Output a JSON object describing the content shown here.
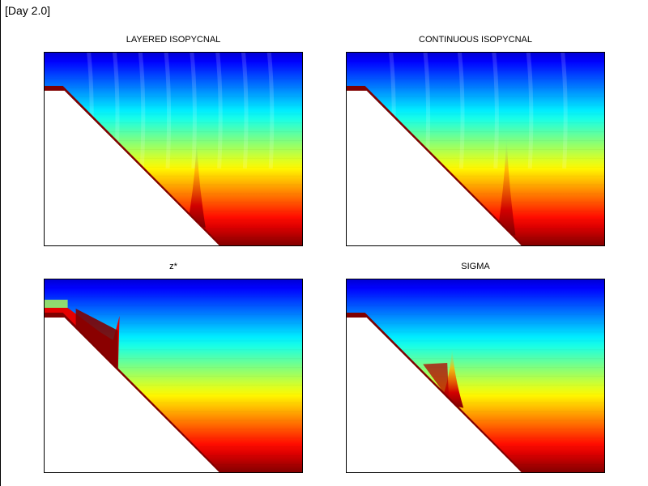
{
  "window": {
    "day_label": "[Day 2.0]"
  },
  "chart_data": [
    {
      "type": "heatmap",
      "title": "LAYERED ISOPYCNAL",
      "xlabel": "",
      "ylabel": "",
      "field": "vertical stratification, colormap jet",
      "features": {
        "shelf_depth_frac": 0.2,
        "slope_start_x_frac": 0.08,
        "slope_end_x_frac": 0.68,
        "plume_x_frac": 0.59,
        "plume_top_frac": 0.45,
        "dense_layer": "thin along slope",
        "ripples": 8
      }
    },
    {
      "type": "heatmap",
      "title": "CONTINUOUS ISOPYCNAL",
      "xlabel": "",
      "ylabel": "",
      "field": "vertical stratification, colormap jet",
      "features": {
        "shelf_depth_frac": 0.2,
        "slope_start_x_frac": 0.08,
        "slope_end_x_frac": 0.68,
        "plume_x_frac": 0.62,
        "plume_top_frac": 0.42,
        "dense_layer": "thin along slope",
        "ripples": 6
      }
    },
    {
      "type": "heatmap",
      "title": "z*",
      "xlabel": "",
      "ylabel": "",
      "field": "vertical stratification, colormap jet",
      "features": {
        "shelf_depth_frac": 0.2,
        "slope_start_x_frac": 0.08,
        "slope_end_x_frac": 0.68,
        "plume_x_frac": 0.28,
        "plume_top_frac": 0.05,
        "dense_layer": "blocky pooling near shelf break",
        "ripples": 0
      }
    },
    {
      "type": "heatmap",
      "title": "SIGMA",
      "xlabel": "",
      "ylabel": "",
      "field": "vertical stratification, colormap jet",
      "features": {
        "shelf_depth_frac": 0.2,
        "slope_start_x_frac": 0.08,
        "slope_end_x_frac": 0.68,
        "plume_x_frac": 0.41,
        "plume_top_frac": 0.35,
        "dense_layer": "thin along slope with mid-slope plume",
        "ripples": 0
      }
    }
  ]
}
